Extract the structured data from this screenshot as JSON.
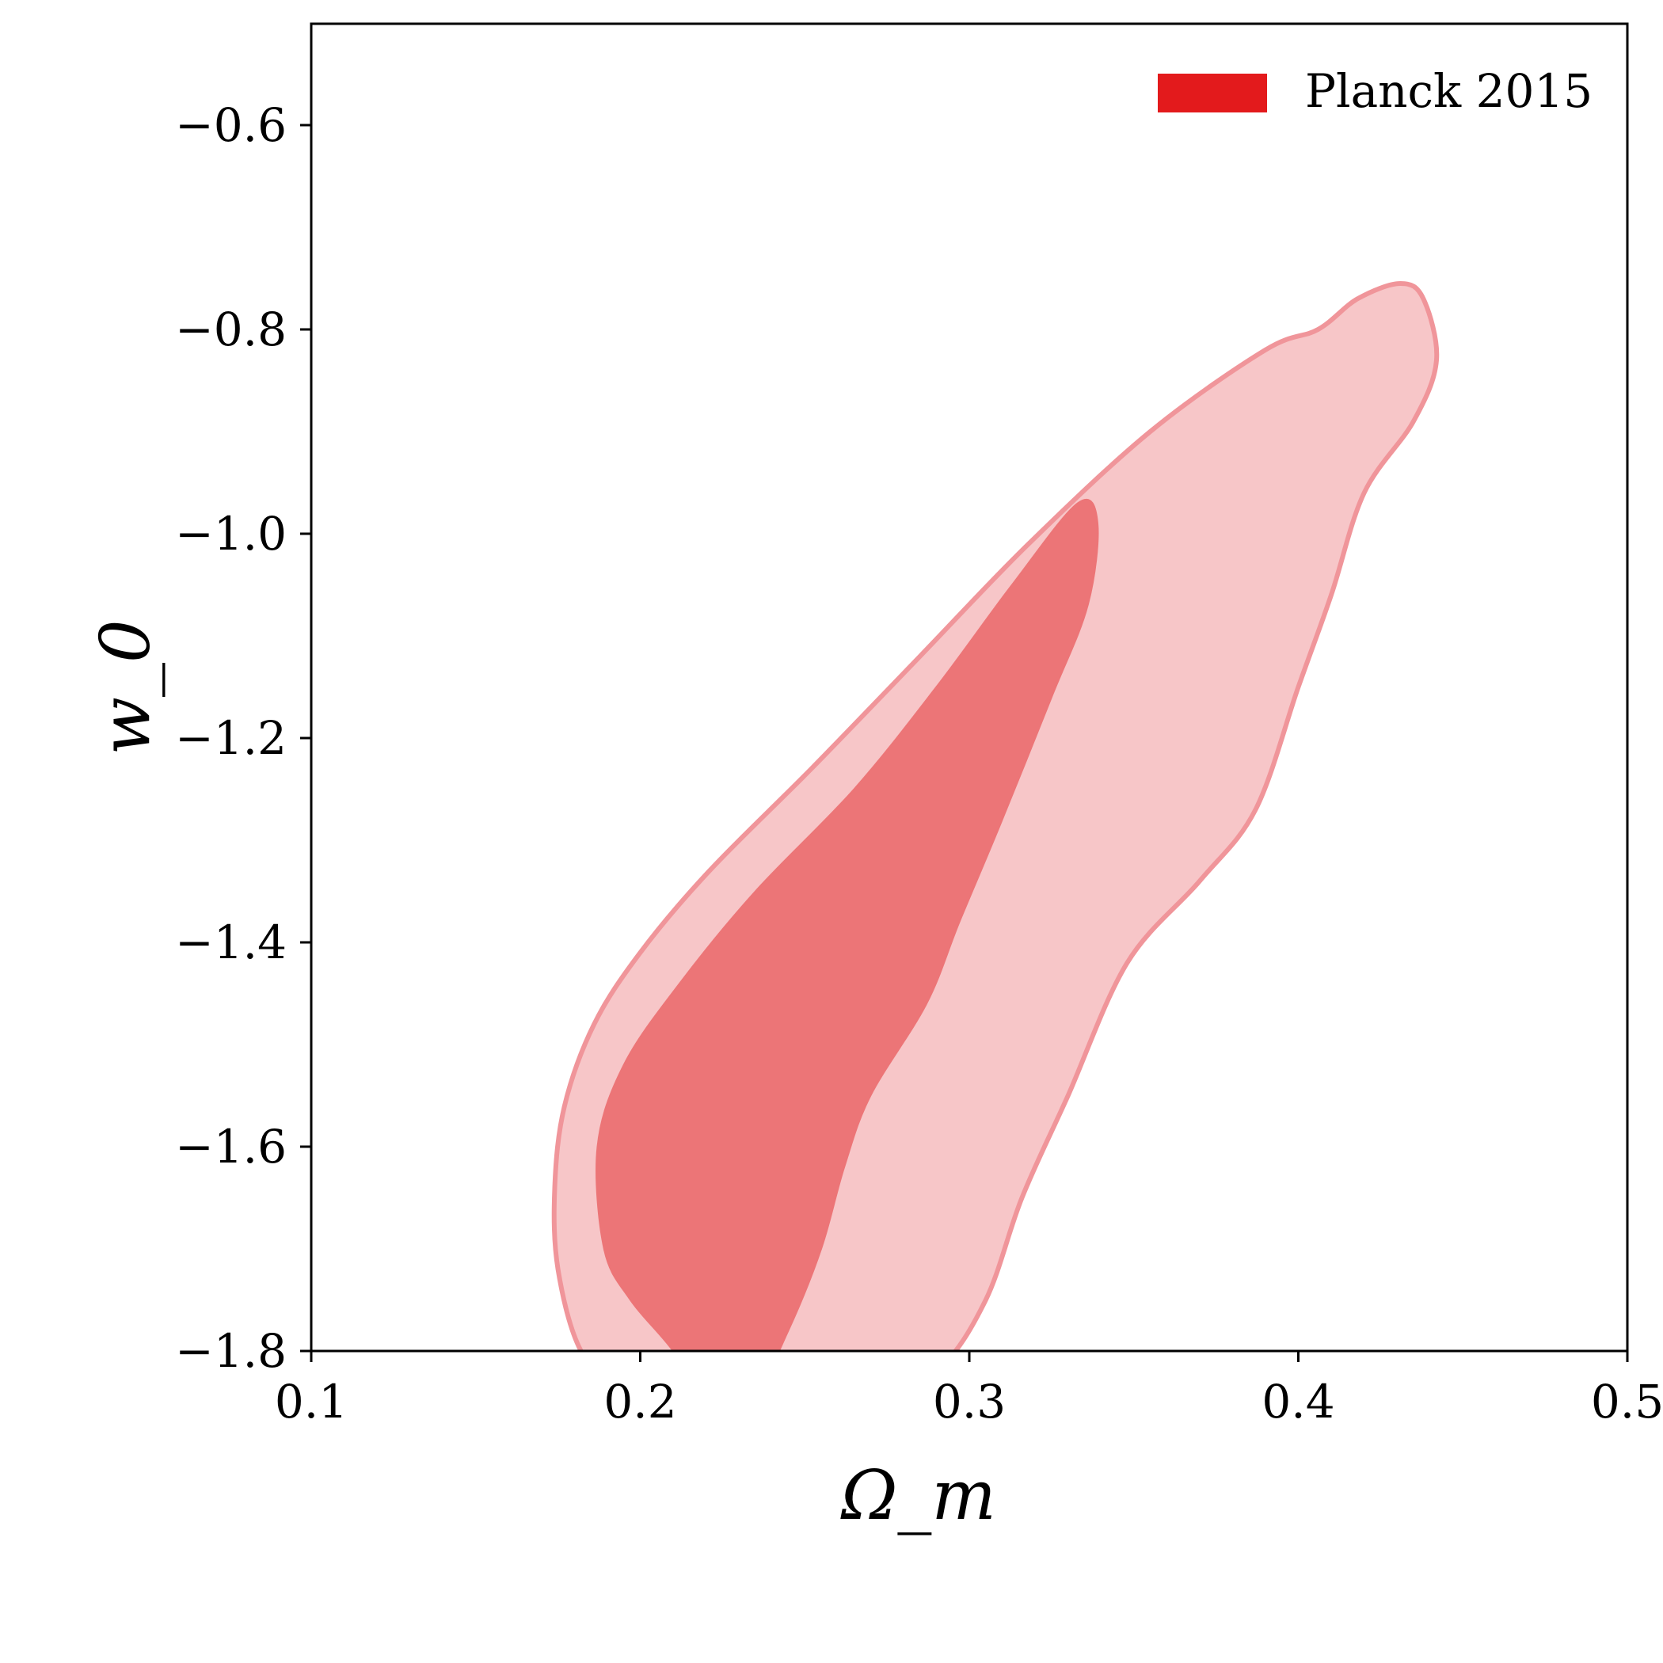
{
  "chart_data": {
    "type": "area",
    "xlabel": "Ω_m",
    "ylabel": "w_0",
    "xlim": [
      0.1,
      0.5
    ],
    "ylim": [
      -1.9,
      -0.5
    ],
    "xticks": [
      0.1,
      0.2,
      0.3,
      0.4,
      0.5
    ],
    "xtick_labels": [
      "0.1",
      "0.2",
      "0.3",
      "0.4",
      "0.5"
    ],
    "yticks": [
      -0.6,
      -0.8,
      -1.0,
      -1.2,
      -1.4,
      -1.6,
      -1.8
    ],
    "ytick_labels": [
      "−0.6",
      "−0.8",
      "−1.0",
      "−1.2",
      "−1.4",
      "−1.6",
      "−1.8"
    ],
    "grid": false,
    "legend": {
      "placement": "top-right",
      "entries": [
        {
          "label": "Planck 2015",
          "color": "#e31a1c"
        }
      ]
    },
    "series": [
      {
        "name": "Planck 2015",
        "color": "#e31a1c",
        "contours": [
          {
            "level": "outer",
            "fill": "#f7c6c8",
            "stroke": "#f0959a",
            "points": [
              [
                0.182,
                -1.8
              ],
              [
                0.175,
                -1.72
              ],
              [
                0.174,
                -1.64
              ],
              [
                0.177,
                -1.56
              ],
              [
                0.186,
                -1.48
              ],
              [
                0.2,
                -1.41
              ],
              [
                0.221,
                -1.33
              ],
              [
                0.252,
                -1.23
              ],
              [
                0.285,
                -1.12
              ],
              [
                0.318,
                -1.01
              ],
              [
                0.355,
                -0.9
              ],
              [
                0.39,
                -0.82
              ],
              [
                0.406,
                -0.8
              ],
              [
                0.418,
                -0.77
              ],
              [
                0.431,
                -0.755
              ],
              [
                0.438,
                -0.77
              ],
              [
                0.442,
                -0.83
              ],
              [
                0.435,
                -0.89
              ],
              [
                0.42,
                -0.96
              ],
              [
                0.41,
                -1.06
              ],
              [
                0.4,
                -1.15
              ],
              [
                0.387,
                -1.27
              ],
              [
                0.37,
                -1.34
              ],
              [
                0.348,
                -1.42
              ],
              [
                0.33,
                -1.55
              ],
              [
                0.316,
                -1.65
              ],
              [
                0.305,
                -1.75
              ],
              [
                0.29,
                -1.82
              ],
              [
                0.268,
                -1.85
              ],
              [
                0.245,
                -1.86
              ],
              [
                0.22,
                -1.86
              ],
              [
                0.195,
                -1.84
              ],
              [
                0.182,
                -1.8
              ]
            ]
          },
          {
            "level": "inner",
            "fill": "#ec7577",
            "stroke": "#ec7577",
            "points": [
              [
                0.21,
                -1.8
              ],
              [
                0.197,
                -1.75
              ],
              [
                0.189,
                -1.7
              ],
              [
                0.187,
                -1.6
              ],
              [
                0.195,
                -1.52
              ],
              [
                0.212,
                -1.44
              ],
              [
                0.235,
                -1.35
              ],
              [
                0.265,
                -1.25
              ],
              [
                0.29,
                -1.15
              ],
              [
                0.313,
                -1.05
              ],
              [
                0.333,
                -0.97
              ],
              [
                0.339,
                -0.99
              ],
              [
                0.336,
                -1.07
              ],
              [
                0.325,
                -1.16
              ],
              [
                0.31,
                -1.28
              ],
              [
                0.297,
                -1.38
              ],
              [
                0.287,
                -1.46
              ],
              [
                0.27,
                -1.55
              ],
              [
                0.262,
                -1.62
              ],
              [
                0.255,
                -1.7
              ],
              [
                0.245,
                -1.78
              ],
              [
                0.235,
                -1.84
              ],
              [
                0.222,
                -1.86
              ],
              [
                0.21,
                -1.8
              ]
            ]
          }
        ]
      }
    ]
  }
}
